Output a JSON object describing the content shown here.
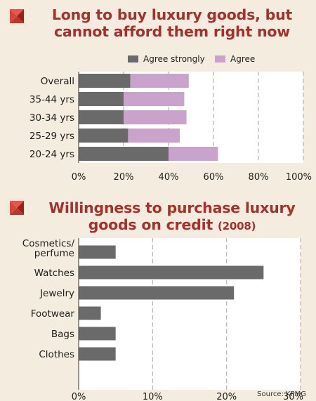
{
  "colors": {
    "background": "#f3ecdf",
    "title": "#a6312a",
    "agree_strongly": "#6a6a6a",
    "agree": "#c9a3cc",
    "bar": "#6a6a6a",
    "grid": "#b5b5b5"
  },
  "icons": {
    "title_marker": "red-pyramid-square-icon"
  },
  "panel1": {
    "title": "Long to buy luxury goods, but cannot afford them right now",
    "chart_data": {
      "type": "bar",
      "orientation": "horizontal",
      "stacked": true,
      "title": "Long to buy luxury goods, but cannot afford them right now",
      "categories": [
        "Overall",
        "35-44 yrs",
        "30-34 yrs",
        "25-29 yrs",
        "20-24 yrs"
      ],
      "series": [
        {
          "name": "Agree strongly",
          "color": "#6a6a6a",
          "values": [
            23,
            20,
            20,
            22,
            40
          ]
        },
        {
          "name": "Agree",
          "color": "#c9a3cc",
          "values": [
            26,
            27,
            28,
            23,
            22
          ]
        }
      ],
      "xlim": [
        0,
        100
      ],
      "xticks": [
        "0%",
        "20%",
        "40%",
        "60%",
        "80%",
        "100%"
      ],
      "tick_values": [
        0,
        20,
        40,
        60,
        80,
        100
      ],
      "legend": "top-right",
      "grid": "vertical dashed"
    }
  },
  "panel2": {
    "title": "Willingness to purchase luxury goods on credit",
    "title_suffix": "(2008)",
    "chart_data": {
      "type": "bar",
      "orientation": "horizontal",
      "title": "Willingness to purchase luxury goods on credit (2008)",
      "categories": [
        "Cosmetics/ perfume",
        "Watches",
        "Jewelry",
        "Footwear",
        "Bags",
        "Clothes"
      ],
      "category_lines": [
        [
          "Cosmetics/",
          "perfume"
        ],
        [
          "Watches"
        ],
        [
          "Jewelry"
        ],
        [
          "Footwear"
        ],
        [
          "Bags"
        ],
        [
          "Clothes"
        ]
      ],
      "values": [
        5,
        25,
        21,
        3,
        5,
        5
      ],
      "xlim": [
        0,
        30
      ],
      "xticks": [
        "0%",
        "10%",
        "20%",
        "30%"
      ],
      "tick_values": [
        0,
        10,
        20,
        30
      ],
      "grid": "vertical dashed"
    }
  },
  "source": "Source: KPMG"
}
